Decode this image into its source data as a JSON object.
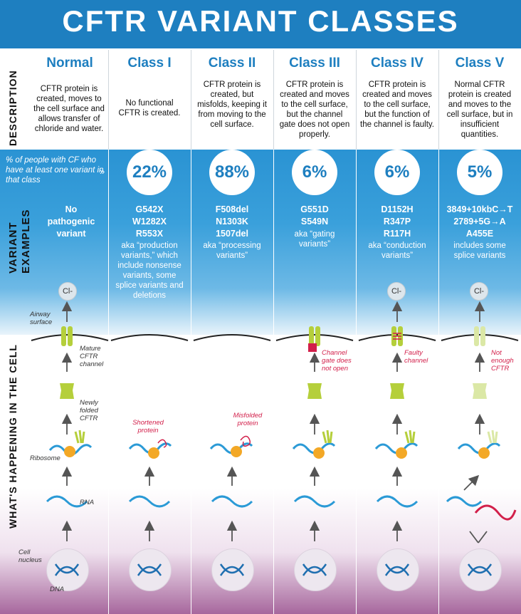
{
  "title": "CFTR VARIANT CLASSES",
  "side_labels": {
    "description": "DESCRIPTION",
    "variant_examples_1": "VARIANT",
    "variant_examples_2": "EXAMPLES",
    "cell": "WHAT'S HAPPENING IN THE CELL"
  },
  "percent_note": "% of people with CF who have at least one variant in that class",
  "chevrons": "»",
  "columns": [
    {
      "head": "Normal",
      "desc": "CFTR protein is created, moves to the cell surface and allows transfer of chloride and water.",
      "percent": "",
      "variants": [
        "No",
        "pathogenic",
        "variant"
      ],
      "aka": ""
    },
    {
      "head": "Class I",
      "desc": "No functional CFTR is created.",
      "percent": "22%",
      "variants": [
        "G542X",
        "W1282X",
        "R553X"
      ],
      "aka": "aka “production variants,” which include nonsense variants, some splice variants and deletions"
    },
    {
      "head": "Class II",
      "desc": "CFTR protein is created, but misfolds, keeping it from moving to the cell surface.",
      "percent": "88%",
      "variants": [
        "F508del",
        "N1303K",
        "1507del"
      ],
      "aka": "aka “processing variants”"
    },
    {
      "head": "Class III",
      "desc": "CFTR protein is created and moves to the cell surface, but the channel gate does not open properly.",
      "percent": "6%",
      "variants": [
        "G551D",
        "S549N"
      ],
      "aka": "aka “gating variants”"
    },
    {
      "head": "Class IV",
      "desc": "CFTR protein is created and moves to the cell surface, but the function of the channel is faulty.",
      "percent": "6%",
      "variants": [
        "D1152H",
        "R347P",
        "R117H"
      ],
      "aka": "aka “conduction variants”"
    },
    {
      "head": "Class V",
      "desc": "Normal CFTR protein is created and moves to the cell surface, but in insufficient quantities.",
      "percent": "5%",
      "variants": [
        "3849+10kbC→T",
        "2789+5G→A",
        "A455E"
      ],
      "aka": "includes some splice variants"
    }
  ],
  "cell_labels": {
    "cl": "Cl-",
    "airway_surface": "Airway surface",
    "mature": "Mature CFTR channel",
    "newly_folded": "Newly folded CFTR",
    "ribosome": "Ribosome",
    "rna": "RNA",
    "cell_nucleus": "Cell nucleus",
    "dna": "DNA"
  },
  "red_labels": {
    "shortened": "Shortened protein",
    "misfolded": "Misfolded protein",
    "gate": "Channel gate does not open",
    "faulty": "Faulty channel",
    "not_enough": "Not enough CFTR"
  },
  "colors": {
    "brand_blue": "#1e7fc0",
    "channel_green": "#b5cf3b",
    "pale_green": "#dbe8a6",
    "ribosome_orange": "#f3a826",
    "rna_blue": "#2b9ad6",
    "alert_red": "#d21f4a"
  }
}
